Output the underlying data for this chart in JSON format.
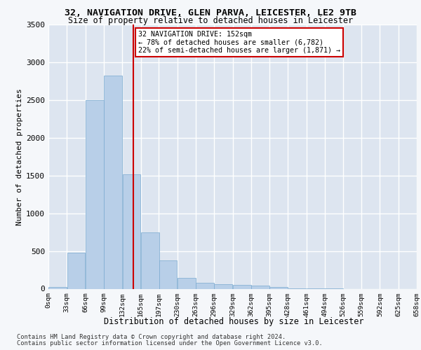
{
  "title1": "32, NAVIGATION DRIVE, GLEN PARVA, LEICESTER, LE2 9TB",
  "title2": "Size of property relative to detached houses in Leicester",
  "xlabel": "Distribution of detached houses by size in Leicester",
  "ylabel": "Number of detached properties",
  "bin_labels": [
    "0sqm",
    "33sqm",
    "66sqm",
    "99sqm",
    "132sqm",
    "165sqm",
    "197sqm",
    "230sqm",
    "263sqm",
    "296sqm",
    "329sqm",
    "362sqm",
    "395sqm",
    "428sqm",
    "461sqm",
    "494sqm",
    "526sqm",
    "559sqm",
    "592sqm",
    "625sqm",
    "658sqm"
  ],
  "bin_edges": [
    0,
    33,
    66,
    99,
    132,
    165,
    197,
    230,
    263,
    296,
    329,
    362,
    395,
    428,
    461,
    494,
    526,
    559,
    592,
    625,
    658
  ],
  "bar_heights": [
    20,
    480,
    2500,
    2820,
    1520,
    750,
    380,
    140,
    75,
    60,
    55,
    40,
    20,
    5,
    2,
    1,
    0,
    0,
    0,
    0
  ],
  "bar_color": "#b8cfe8",
  "bar_edge_color": "#7aaad0",
  "property_value": 152,
  "red_line_color": "#cc0000",
  "annotation_text": "32 NAVIGATION DRIVE: 152sqm\n← 78% of detached houses are smaller (6,782)\n22% of semi-detached houses are larger (1,871) →",
  "annotation_box_color": "#ffffff",
  "annotation_box_edge": "#cc0000",
  "ylim": [
    0,
    3500
  ],
  "background_color": "#dde5f0",
  "fig_background": "#f5f7fa",
  "grid_color": "#ffffff",
  "footer1": "Contains HM Land Registry data © Crown copyright and database right 2024.",
  "footer2": "Contains public sector information licensed under the Open Government Licence v3.0."
}
